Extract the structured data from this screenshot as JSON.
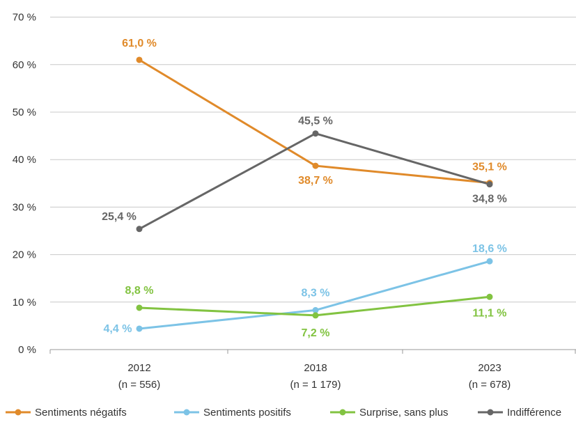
{
  "chart_data": {
    "type": "line",
    "categories": [
      "2012",
      "2018",
      "2023"
    ],
    "category_sublabels": [
      "(n = 556)",
      "(n = 1 179)",
      "(n = 678)"
    ],
    "y_ticks": [
      "0 %",
      "10 %",
      "20 %",
      "30 %",
      "40 %",
      "50 %",
      "60 %",
      "70 %"
    ],
    "ylim": [
      0,
      70
    ],
    "grid": true,
    "legend_position": "bottom",
    "series": [
      {
        "name": "Sentiments négatifs",
        "color": "#E08A2A",
        "values": [
          61.0,
          38.7,
          35.1
        ],
        "labels": [
          "61,0 %",
          "38,7 %",
          "35,1 %"
        ]
      },
      {
        "name": "Sentiments positifs",
        "color": "#7CC3E6",
        "values": [
          4.4,
          8.3,
          18.6
        ],
        "labels": [
          "4,4 %",
          "8,3 %",
          "18,6 %"
        ]
      },
      {
        "name": "Surprise, sans plus",
        "color": "#82C341",
        "values": [
          8.8,
          7.2,
          11.1
        ],
        "labels": [
          "8,8 %",
          "7,2 %",
          "11,1 %"
        ]
      },
      {
        "name": "Indifférence",
        "color": "#666666",
        "values": [
          25.4,
          45.5,
          34.8
        ],
        "labels": [
          "25,4 %",
          "45,5 %",
          "34,8 %"
        ]
      }
    ]
  }
}
